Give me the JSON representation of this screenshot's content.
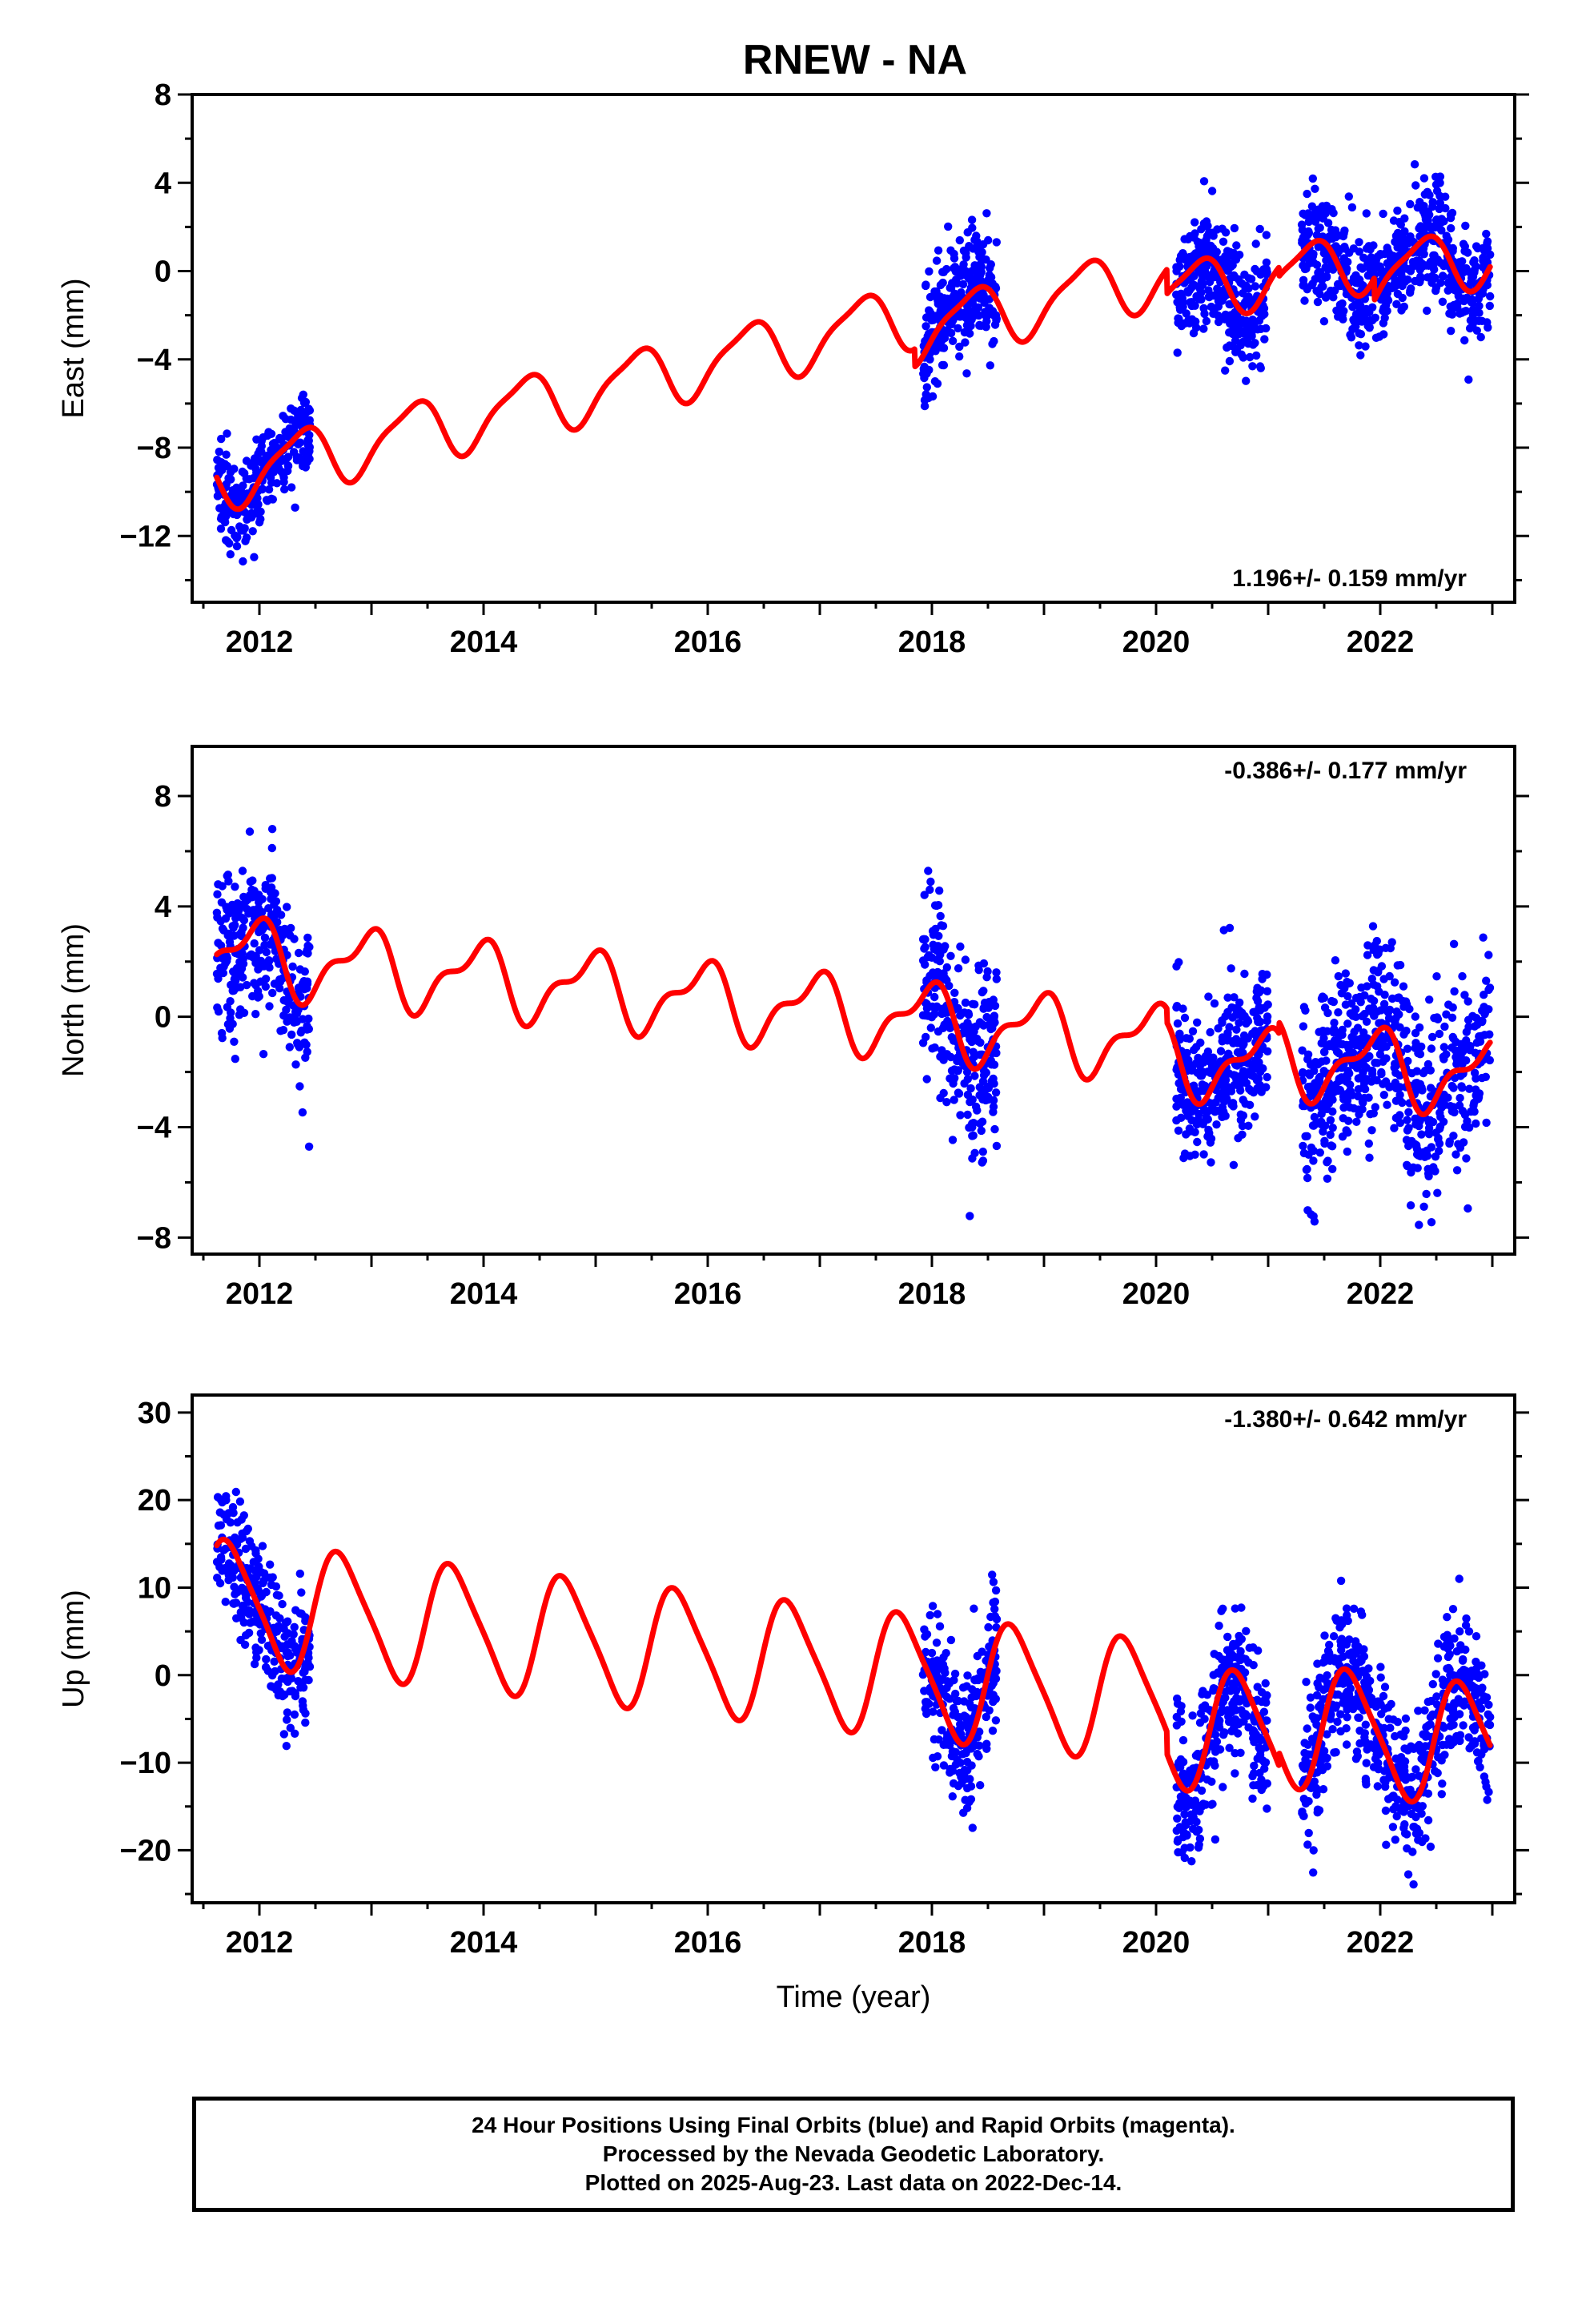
{
  "title": "RNEW - NA",
  "chart_data": [
    {
      "type": "scatter",
      "name": "east",
      "ylabel": "East (mm)",
      "xlabel": "",
      "rate_label": "1.196+/- 0.159 mm/yr",
      "xlim": [
        2011.4,
        2023.2
      ],
      "ylim": [
        -15,
        8
      ],
      "xticks": [
        2012,
        2014,
        2016,
        2018,
        2020,
        2022
      ],
      "yticks": [
        -12,
        -8,
        -4,
        0,
        4,
        8
      ],
      "point_color": "#0000ff",
      "model_color": "#ff0000",
      "data_segments": [
        {
          "start": 2011.62,
          "end": 2012.45,
          "n": 300,
          "offset": 0.0,
          "noise": 0.9
        },
        {
          "start": 2017.92,
          "end": 2018.58,
          "n": 260,
          "offset": 0.2,
          "noise": 1.3
        },
        {
          "start": 2020.18,
          "end": 2021.0,
          "n": 340,
          "offset": -0.3,
          "noise": 1.3
        },
        {
          "start": 2021.3,
          "end": 2022.98,
          "n": 620,
          "offset": 0.0,
          "noise": 1.3
        }
      ],
      "model": {
        "t0": 2011.62,
        "rate": 1.196,
        "intercept": -9.4,
        "annual_amp": 1.35,
        "annual_phase": 5.6,
        "semi_amp": 0.35,
        "semi_phase": 1.2,
        "steps": [
          {
            "t": 2017.85,
            "size": -0.8
          },
          {
            "t": 2020.1,
            "size": -1.1
          },
          {
            "t": 2021.1,
            "size": -0.4
          },
          {
            "t": 2021.95,
            "size": -1.0
          }
        ]
      }
    },
    {
      "type": "scatter",
      "name": "north",
      "ylabel": "North (mm)",
      "xlabel": "",
      "rate_label": "-0.386+/- 0.177 mm/yr",
      "xlim": [
        2011.4,
        2023.2
      ],
      "ylim": [
        -8.6,
        9.8
      ],
      "xticks": [
        2012,
        2014,
        2016,
        2018,
        2020,
        2022
      ],
      "yticks": [
        -8,
        -4,
        0,
        4,
        8
      ],
      "point_color": "#0000ff",
      "model_color": "#ff0000",
      "data_segments": [
        {
          "start": 2011.62,
          "end": 2012.45,
          "n": 300,
          "offset": 0.0,
          "noise": 1.5
        },
        {
          "start": 2017.92,
          "end": 2018.58,
          "n": 260,
          "offset": 0.0,
          "noise": 1.8
        },
        {
          "start": 2020.18,
          "end": 2021.0,
          "n": 340,
          "offset": 0.0,
          "noise": 1.3
        },
        {
          "start": 2021.3,
          "end": 2022.98,
          "n": 620,
          "offset": 0.0,
          "noise": 1.7
        }
      ],
      "model": {
        "t0": 2011.62,
        "rate": -0.386,
        "intercept": 2.3,
        "annual_amp": 1.2,
        "annual_phase": 1.9,
        "semi_amp": 0.55,
        "semi_phase": 0.4,
        "steps": [
          {
            "t": 2020.1,
            "size": -0.5
          },
          {
            "t": 2021.1,
            "size": 0.4
          }
        ]
      }
    },
    {
      "type": "scatter",
      "name": "up",
      "ylabel": "Up (mm)",
      "xlabel": "Time (year)",
      "rate_label": "-1.380+/- 0.642 mm/yr",
      "xlim": [
        2011.4,
        2023.2
      ],
      "ylim": [
        -26,
        32
      ],
      "xticks": [
        2012,
        2014,
        2016,
        2018,
        2020,
        2022
      ],
      "yticks": [
        -20,
        -10,
        0,
        10,
        20,
        30
      ],
      "point_color": "#0000ff",
      "model_color": "#ff0000",
      "data_segments": [
        {
          "start": 2011.62,
          "end": 2012.45,
          "n": 300,
          "offset": 0.0,
          "noise": 3.8
        },
        {
          "start": 2017.92,
          "end": 2018.58,
          "n": 260,
          "offset": 0.0,
          "noise": 4.0
        },
        {
          "start": 2020.18,
          "end": 2021.0,
          "n": 340,
          "offset": -1.0,
          "noise": 4.2
        },
        {
          "start": 2021.3,
          "end": 2022.98,
          "n": 620,
          "offset": 0.0,
          "noise": 4.2
        }
      ],
      "model": {
        "t0": 2011.62,
        "rate": -1.38,
        "intercept": 8.5,
        "annual_amp": 6.8,
        "annual_phase": 3.25,
        "semi_amp": 1.2,
        "semi_phase": 0.3,
        "steps": [
          {
            "t": 2020.1,
            "size": -2.5
          },
          {
            "t": 2021.1,
            "size": 1.5
          }
        ]
      }
    }
  ],
  "footer": {
    "line1": "24 Hour Positions Using Final Orbits (blue) and Rapid Orbits (magenta).",
    "line2": "Processed by the Nevada Geodetic Laboratory.",
    "line3": "Plotted on 2025-Aug-23. Last data on 2022-Dec-14."
  }
}
